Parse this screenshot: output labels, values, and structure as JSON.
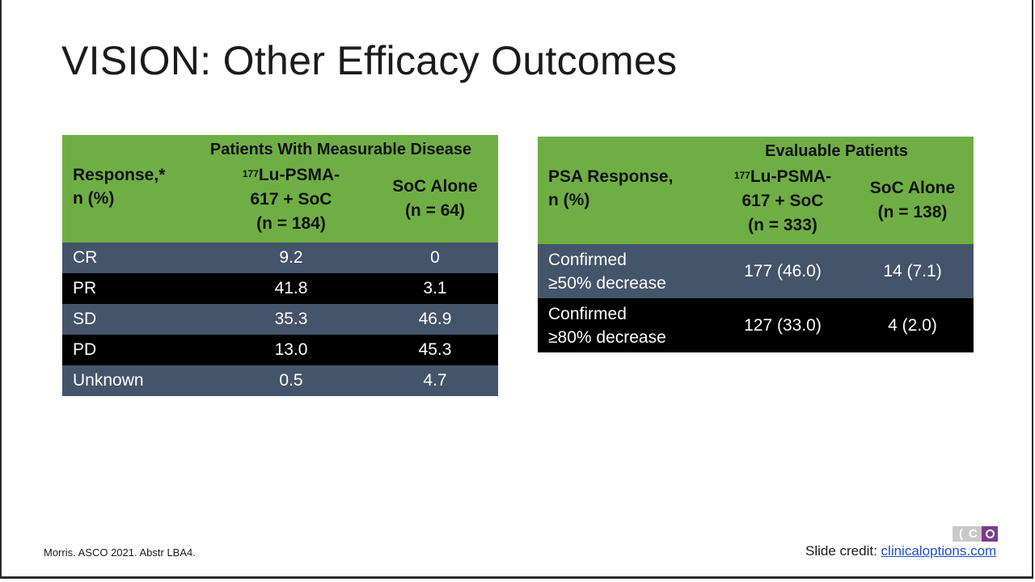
{
  "slide": {
    "title": "VISION: Other Efficacy Outcomes",
    "footnote": "Morris. ASCO 2021. Abstr LBA4.",
    "credit_prefix": "Slide credit: ",
    "credit_link": "clinicaloptions.com"
  },
  "table1": {
    "group_header": "Patients With Measurable Disease",
    "row_header_line1": "Response,*",
    "row_header_line2": "n (%)",
    "col1_sup": "177",
    "col1_line1": "Lu-PSMA-",
    "col1_line2": "617 + SoC",
    "col1_line3": "(n = 184)",
    "col2_line1": "SoC Alone",
    "col2_line2": "(n = 64)",
    "rows": [
      {
        "label": "CR",
        "v1": "9.2",
        "v2": "0"
      },
      {
        "label": "PR",
        "v1": "41.8",
        "v2": "3.1"
      },
      {
        "label": "SD",
        "v1": "35.3",
        "v2": "46.9"
      },
      {
        "label": "PD",
        "v1": "13.0",
        "v2": "45.3"
      },
      {
        "label": "Unknown",
        "v1": "0.5",
        "v2": "4.7"
      }
    ]
  },
  "table2": {
    "group_header": "Evaluable Patients",
    "row_header_line1": "PSA Response,",
    "row_header_line2": "n (%)",
    "col1_sup": "177",
    "col1_line1": "Lu-PSMA-",
    "col1_line2": "617 + SoC",
    "col1_line3": "(n = 333)",
    "col2_line1": "SoC Alone",
    "col2_line2": "(n = 138)",
    "rows": [
      {
        "label_line1": "Confirmed",
        "label_line2": "≥50% decrease",
        "v1": "177 (46.0)",
        "v2": "14 (7.1)"
      },
      {
        "label_line1": "Confirmed",
        "label_line2": "≥80% decrease",
        "v1": "127 (33.0)",
        "v2": "4 (2.0)"
      }
    ]
  },
  "colors": {
    "header_green": "#6fae45",
    "row_blue": "#44546a",
    "row_black": "#000000",
    "link_blue": "#1f4fcf",
    "logo_purple": "#7a3b8f"
  }
}
